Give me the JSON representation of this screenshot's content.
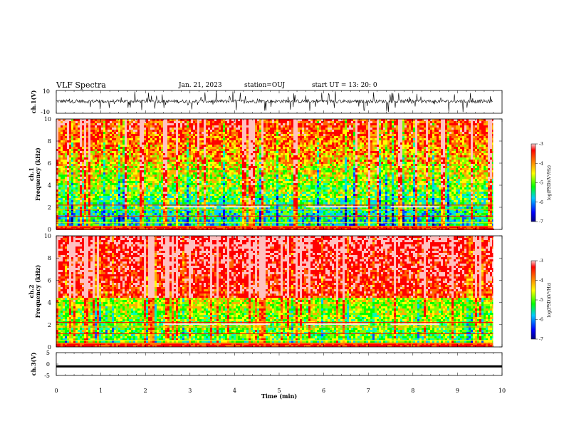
{
  "header": {
    "title": "VLF Spectra",
    "date": "Jan. 21, 2023",
    "station": "station=OUJ",
    "start": "start UT =  13: 20: 0"
  },
  "chart_data": [
    {
      "type": "line",
      "name": "ch1-waveform",
      "ylabel": "ch.1(V)",
      "ylim": [
        -10,
        10
      ],
      "ytick_labels": [
        "10",
        "-10"
      ],
      "xlim": [
        0,
        10
      ]
    },
    {
      "type": "heatmap",
      "name": "ch1-spectrogram",
      "ylabel_line1": "ch.1",
      "ylabel_line2": "Frequency (kHz)",
      "ylim": [
        0,
        10
      ],
      "yticks": [
        "0",
        "2",
        "4",
        "6",
        "8",
        "10"
      ],
      "xlim": [
        0,
        10
      ],
      "data_end_min": 9.8,
      "colorbar": {
        "label": "log(PSD)(V²/Hz)",
        "range": [
          -7,
          -3
        ],
        "ticks": [
          "-3",
          "-4",
          "-5",
          "-6",
          "-7"
        ]
      }
    },
    {
      "type": "heatmap",
      "name": "ch2-spectrogram",
      "ylabel_line1": "ch.2",
      "ylabel_line2": "Frequency (kHz)",
      "ylim": [
        0,
        10
      ],
      "yticks": [
        "0",
        "2",
        "4",
        "6",
        "8",
        "10"
      ],
      "xlim": [
        0,
        10
      ],
      "data_end_min": 9.8,
      "colorbar": {
        "label": "log(PSD)(V²/Hz)",
        "range": [
          -7,
          -3
        ],
        "ticks": [
          "-3",
          "-4",
          "-5",
          "-6",
          "-7"
        ]
      }
    },
    {
      "type": "line",
      "name": "ch3-signal",
      "ylabel": "ch.3(V)",
      "ylim": [
        -5,
        5
      ],
      "ytick_labels": [
        "5",
        "0",
        "-5"
      ],
      "level": -1,
      "xlim": [
        0,
        10
      ],
      "xlabel": "Time (min)",
      "xticks": [
        "0",
        "1",
        "2",
        "3",
        "4",
        "5",
        "6",
        "7",
        "8",
        "9",
        "10"
      ]
    }
  ]
}
